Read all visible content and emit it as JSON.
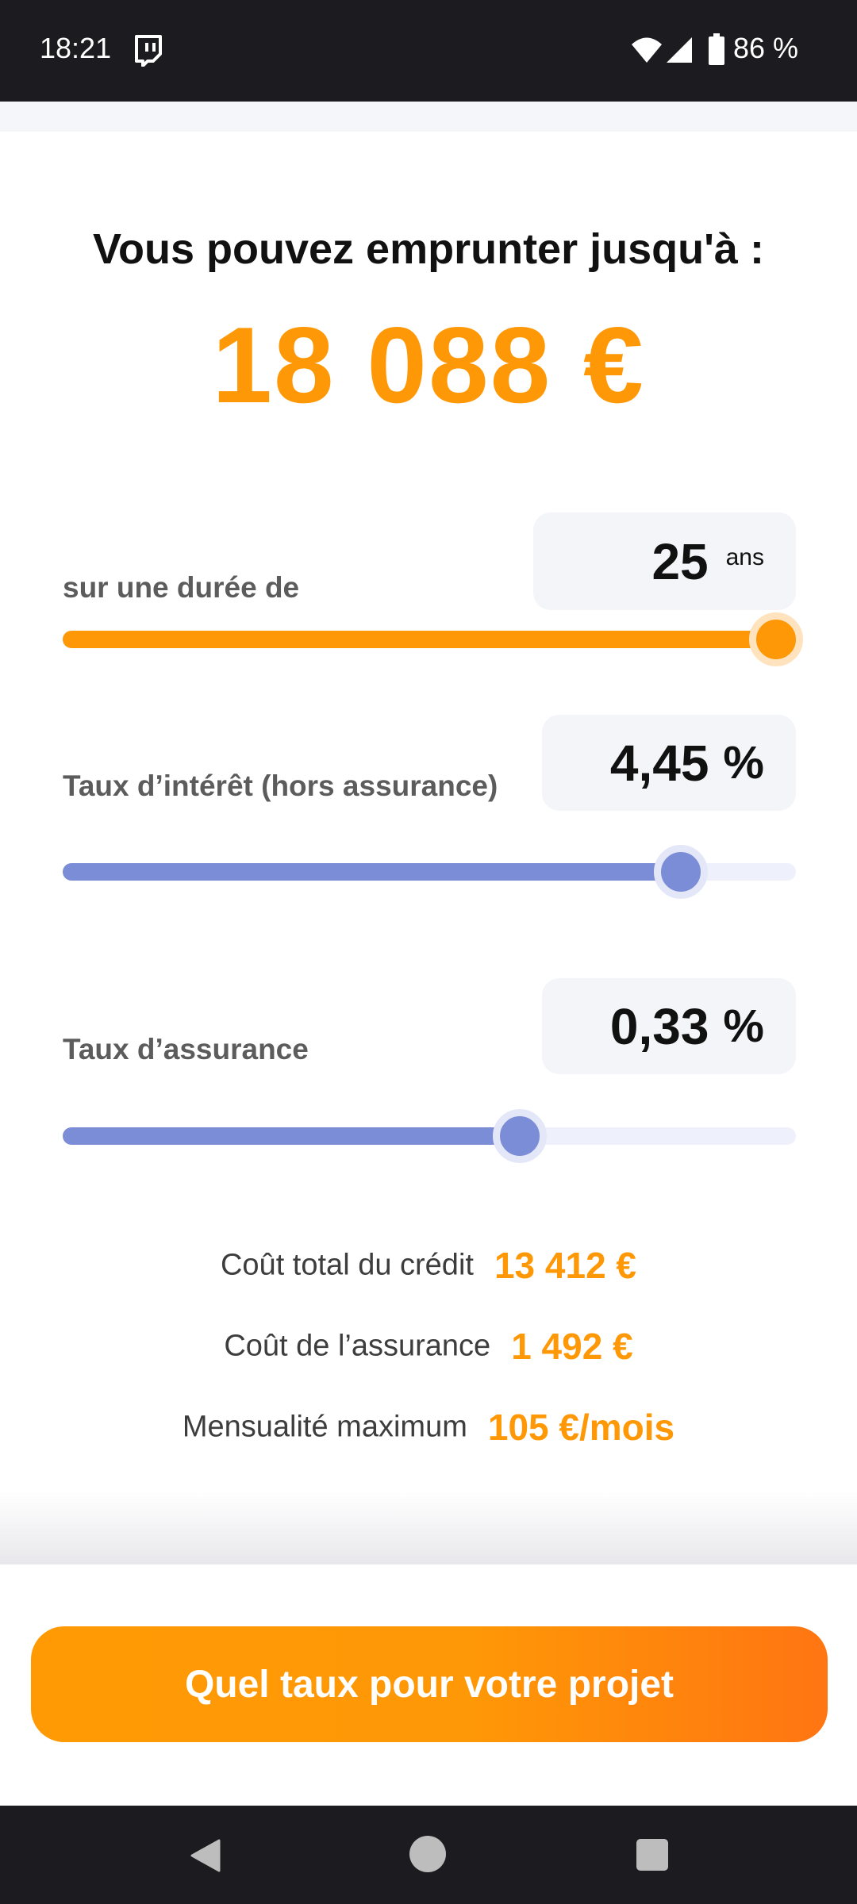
{
  "status_bar": {
    "time": "18:21",
    "battery": "86 %",
    "icons": [
      "twitch-icon",
      "wifi-icon",
      "signal-icon",
      "battery-icon"
    ]
  },
  "result": {
    "headline": "Vous pouvez emprunter jusqu'à :",
    "amount": "18 088 €"
  },
  "sliders": {
    "duration": {
      "label": "sur une durée de",
      "value": "25",
      "unit": "ans",
      "fill_fraction": 1.0,
      "color": "#ff9806"
    },
    "interest": {
      "label": "Taux d’intérêt (hors assurance)",
      "value": "4,45",
      "unit": "%",
      "fill_fraction": 0.87,
      "color": "#7b8dd6"
    },
    "insurance": {
      "label": "Taux d’assurance",
      "value": "0,33",
      "unit": "%",
      "fill_fraction": 0.65,
      "color": "#7b8dd6"
    }
  },
  "summary": {
    "total_cost_label": "Coût total du crédit",
    "total_cost_value": "13 412 €",
    "insurance_cost_label": "Coût de l’assurance",
    "insurance_cost_value": "1 492 €",
    "monthly_label": "Mensualité maximum",
    "monthly_value": "105 €/mois"
  },
  "cta": {
    "label": "Quel taux pour votre projet"
  },
  "colors": {
    "accent": "#ff9806",
    "slider_blue": "#7b8dd6",
    "status_bar": "#1c1c20"
  }
}
